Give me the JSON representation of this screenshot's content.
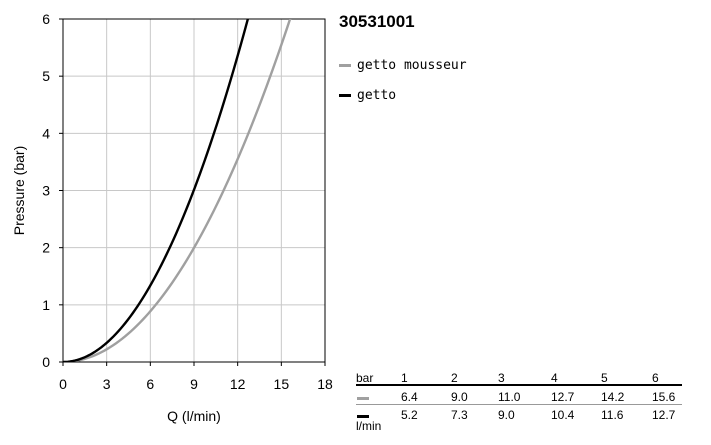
{
  "title": "30531001",
  "legend": [
    {
      "label": "getto mousseur",
      "color": "#a0a0a0"
    },
    {
      "label": "getto",
      "color": "#000000"
    }
  ],
  "chart_data": {
    "type": "line",
    "xlabel": "Q (l/min)",
    "ylabel": "Pressure (bar)",
    "xlim": [
      0,
      18
    ],
    "ylim": [
      0,
      6
    ],
    "x_ticks": [
      "0",
      "3",
      "6",
      "9",
      "12",
      "15",
      "18"
    ],
    "y_ticks": [
      "0",
      "1",
      "2",
      "3",
      "4",
      "5",
      "6"
    ],
    "grid": true,
    "series": [
      {
        "name": "getto mousseur",
        "color": "#a0a0a0",
        "points": [
          [
            0,
            0
          ],
          [
            6.4,
            1
          ],
          [
            9.0,
            2
          ],
          [
            11.0,
            3
          ],
          [
            12.7,
            4
          ],
          [
            14.2,
            5
          ],
          [
            15.6,
            6
          ]
        ]
      },
      {
        "name": "getto",
        "color": "#000000",
        "points": [
          [
            0,
            0
          ],
          [
            5.2,
            1
          ],
          [
            7.3,
            2
          ],
          [
            9.0,
            3
          ],
          [
            10.4,
            4
          ],
          [
            11.6,
            5
          ],
          [
            12.7,
            6
          ]
        ]
      }
    ]
  },
  "table": {
    "header_label": "bar",
    "unit_label": "l/min",
    "pressures": [
      "1",
      "2",
      "3",
      "4",
      "5",
      "6"
    ],
    "rows": [
      {
        "color": "#a0a0a0",
        "values": [
          "6.4",
          "9.0",
          "11.0",
          "12.7",
          "14.2",
          "15.6"
        ]
      },
      {
        "color": "#000000",
        "values": [
          "5.2",
          "7.3",
          "9.0",
          "10.4",
          "11.6",
          "12.7"
        ]
      }
    ]
  }
}
